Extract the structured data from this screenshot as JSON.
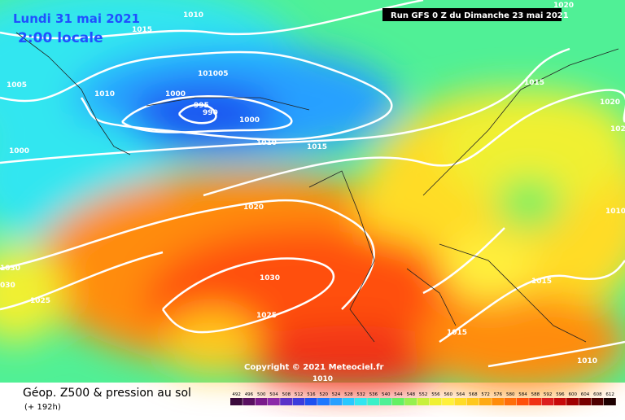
{
  "header": {
    "date": "Lundi 31 mai 2021",
    "time": "2:00 locale",
    "run": "Run GFS 0 Z du Dimanche 23 mai 2021"
  },
  "copyright": "Copyright © 2021 Meteociel.fr",
  "footer": {
    "title": "Géop. Z500 & pression au sol",
    "lead": "(+ 192h)"
  },
  "scale": {
    "values": [
      492,
      496,
      500,
      504,
      508,
      512,
      516,
      520,
      524,
      528,
      532,
      536,
      540,
      544,
      548,
      552,
      556,
      560,
      564,
      568,
      572,
      576,
      580,
      584,
      588,
      592,
      596,
      600,
      604,
      608,
      612
    ],
    "colors": [
      "#3b0a3b",
      "#5a1060",
      "#7a1a8a",
      "#8c2aa8",
      "#5a32c8",
      "#3c3cdc",
      "#1e50f0",
      "#1e78ff",
      "#28a0ff",
      "#28c8ff",
      "#32e6f0",
      "#3cf0c8",
      "#50f096",
      "#64f064",
      "#96f050",
      "#c8f03c",
      "#f0f032",
      "#fff03c",
      "#ffdc28",
      "#ffc81e",
      "#ffaa14",
      "#ff8c0a",
      "#ff6e0a",
      "#ff500a",
      "#f03214",
      "#dc1e1e",
      "#c80a0a",
      "#a00000",
      "#780000",
      "#500000",
      "#1e0000"
    ]
  },
  "isobars": [
    "1010",
    "1015",
    "1020",
    "1005",
    "1010",
    "1000",
    "101005",
    "995",
    "990",
    "1000",
    "1010",
    "1015",
    "1015",
    "1020",
    "102",
    "1000",
    "1020",
    "1010",
    "1030",
    "030",
    "1025",
    "1030",
    "1025",
    "1015",
    "1015",
    "1010",
    "1010"
  ]
}
